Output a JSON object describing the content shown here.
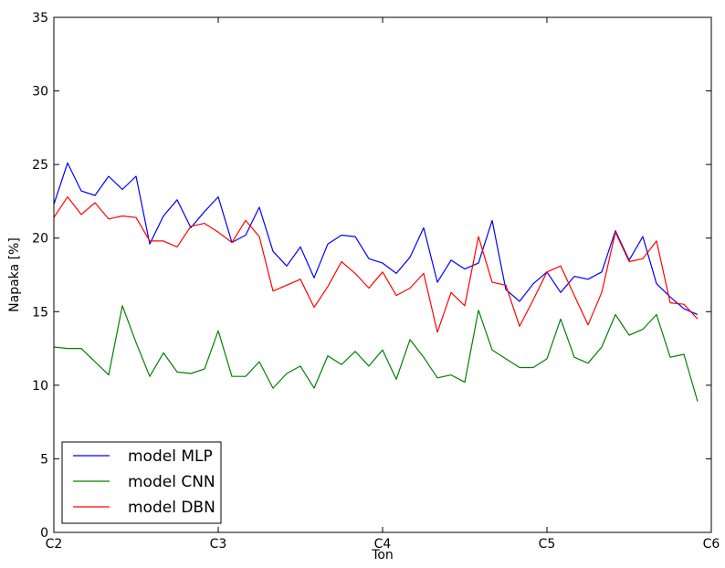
{
  "chart_data": {
    "type": "line",
    "title": "",
    "xlabel": "Ton",
    "ylabel": "Napaka [%]",
    "xlim": [
      0,
      48
    ],
    "ylim": [
      0,
      35
    ],
    "x_ticks": [
      {
        "value": 0,
        "label": "C2"
      },
      {
        "value": 12,
        "label": "C3"
      },
      {
        "value": 24,
        "label": "C4"
      },
      {
        "value": 36,
        "label": "C5"
      },
      {
        "value": 48,
        "label": "C6"
      }
    ],
    "y_ticks": [
      {
        "value": 0,
        "label": "0"
      },
      {
        "value": 5,
        "label": "5"
      },
      {
        "value": 10,
        "label": "10"
      },
      {
        "value": 15,
        "label": "15"
      },
      {
        "value": 20,
        "label": "20"
      },
      {
        "value": 25,
        "label": "25"
      },
      {
        "value": 30,
        "label": "30"
      },
      {
        "value": 35,
        "label": "35"
      }
    ],
    "grid": false,
    "legend_position": "lower-left",
    "x": [
      0,
      1,
      2,
      3,
      4,
      5,
      6,
      7,
      8,
      9,
      10,
      11,
      12,
      13,
      14,
      15,
      16,
      17,
      18,
      19,
      20,
      21,
      22,
      23,
      24,
      25,
      26,
      27,
      28,
      29,
      30,
      31,
      32,
      33,
      34,
      35,
      36,
      37,
      38,
      39,
      40,
      41,
      42,
      43,
      44,
      45,
      46,
      47
    ],
    "series": [
      {
        "name": "model MLP",
        "color": "#0000ff",
        "values": [
          22.3,
          25.1,
          23.2,
          22.9,
          24.2,
          23.3,
          24.2,
          19.6,
          21.5,
          22.6,
          20.7,
          21.8,
          22.8,
          19.7,
          20.2,
          22.1,
          19.1,
          18.1,
          19.4,
          17.3,
          19.6,
          20.2,
          20.1,
          18.6,
          18.3,
          17.6,
          18.7,
          20.7,
          17.0,
          18.5,
          17.9,
          18.3,
          21.2,
          16.5,
          15.7,
          16.9,
          17.7,
          16.3,
          17.4,
          17.2,
          17.7,
          20.5,
          18.5,
          20.1,
          16.9,
          16.0,
          15.2,
          14.8
        ]
      },
      {
        "name": "model CNN",
        "color": "#008000",
        "values": [
          12.6,
          12.5,
          12.5,
          11.6,
          10.7,
          15.4,
          12.9,
          10.6,
          12.2,
          10.9,
          10.8,
          11.1,
          13.7,
          10.6,
          10.6,
          11.6,
          9.8,
          10.8,
          11.3,
          9.8,
          12.0,
          11.4,
          12.3,
          11.3,
          12.4,
          10.4,
          13.1,
          11.9,
          10.5,
          10.7,
          10.2,
          15.1,
          12.4,
          11.8,
          11.2,
          11.2,
          11.8,
          14.5,
          11.9,
          11.5,
          12.6,
          14.8,
          13.4,
          13.8,
          14.8,
          11.9,
          12.1,
          8.9
        ]
      },
      {
        "name": "model DBN",
        "color": "#ff0000",
        "values": [
          21.4,
          22.8,
          21.6,
          22.4,
          21.3,
          21.5,
          21.4,
          19.8,
          19.8,
          19.4,
          20.8,
          21.0,
          20.4,
          19.7,
          21.2,
          20.1,
          16.4,
          16.8,
          17.2,
          15.3,
          16.7,
          18.4,
          17.6,
          16.6,
          17.7,
          16.1,
          16.6,
          17.6,
          13.6,
          16.3,
          15.4,
          20.1,
          17.0,
          16.8,
          14.0,
          15.8,
          17.7,
          18.1,
          16.1,
          14.1,
          16.3,
          20.4,
          18.4,
          18.6,
          19.8,
          15.6,
          15.5,
          14.5
        ]
      }
    ]
  }
}
